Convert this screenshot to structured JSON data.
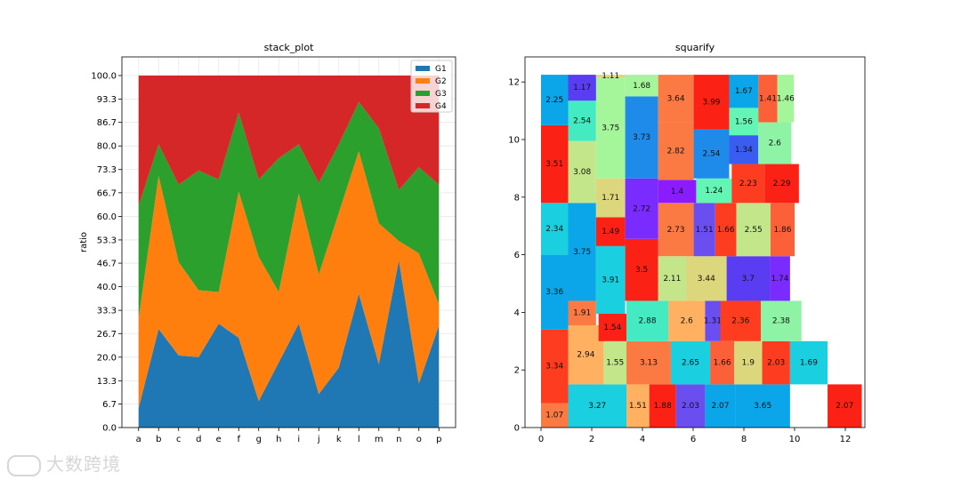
{
  "chart_data": [
    {
      "type": "area",
      "stacked": true,
      "title": "stack_plot",
      "ylabel": "ratio",
      "xlabel": "",
      "categories": [
        "a",
        "b",
        "c",
        "d",
        "e",
        "f",
        "g",
        "h",
        "i",
        "j",
        "k",
        "l",
        "m",
        "n",
        "o",
        "p"
      ],
      "yticks": [
        "0.0",
        "6.7",
        "13.3",
        "20.0",
        "26.7",
        "33.3",
        "40.0",
        "46.7",
        "53.3",
        "60.0",
        "66.7",
        "73.3",
        "80.0",
        "86.7",
        "93.3",
        "100.0"
      ],
      "ylim": [
        0,
        100
      ],
      "grid": true,
      "legend_position": "top-right",
      "series": [
        {
          "name": "G1",
          "color": "#1f77b4",
          "values": [
            5.5,
            28,
            20.5,
            20,
            29.5,
            25.5,
            7.5,
            18.5,
            29.5,
            9.5,
            17,
            38,
            18,
            47.5,
            12.5,
            29
          ]
        },
        {
          "name": "G2",
          "color": "#ff7f0e",
          "values": [
            25.5,
            43.5,
            26.5,
            19,
            9,
            41.5,
            41,
            20,
            37,
            34,
            44,
            40.5,
            40,
            5.5,
            37,
            6
          ]
        },
        {
          "name": "G3",
          "color": "#2ca02c",
          "values": [
            32,
            9,
            22,
            34,
            32,
            22.5,
            22,
            38,
            14,
            26,
            19.5,
            14,
            27,
            14.5,
            24.5,
            34
          ]
        },
        {
          "name": "G4",
          "color": "#d62728",
          "values": [
            37,
            19.5,
            31,
            27,
            29.5,
            10.5,
            29.5,
            23.5,
            19.5,
            30.5,
            19.5,
            7.5,
            15,
            32.5,
            26,
            31
          ]
        }
      ]
    },
    {
      "type": "treemap",
      "title": "squarify",
      "xlabel": "",
      "ylabel": "",
      "xlim": [
        0,
        12.65
      ],
      "ylim": [
        0,
        12.55
      ],
      "xticks": [
        "0",
        "2",
        "4",
        "6",
        "8",
        "10",
        "12"
      ],
      "yticks": [
        "0",
        "2",
        "4",
        "6",
        "8",
        "10",
        "12"
      ],
      "rects": [
        {
          "label": "1.07",
          "x": 0,
          "y": 0,
          "w": 1.07,
          "h": 0.85,
          "color": "#fb7a43"
        },
        {
          "label": "3.34",
          "x": 0,
          "y": 0.85,
          "w": 1.07,
          "h": 2.55,
          "color": "#fd3c20"
        },
        {
          "label": "3.36",
          "x": 0,
          "y": 3.4,
          "w": 1.07,
          "h": 2.6,
          "color": "#0ba6e9"
        },
        {
          "label": "2.34",
          "x": 0,
          "y": 6,
          "w": 1.07,
          "h": 1.8,
          "color": "#1acfe0"
        },
        {
          "label": "3.51",
          "x": 0,
          "y": 7.8,
          "w": 1.07,
          "h": 2.7,
          "color": "#fb2114"
        },
        {
          "label": "2.25",
          "x": 0,
          "y": 10.5,
          "w": 1.07,
          "h": 1.75,
          "color": "#0ba6e9"
        },
        {
          "label": "3.27",
          "x": 1.07,
          "y": 0,
          "w": 2.3,
          "h": 1.5,
          "color": "#1acfe0"
        },
        {
          "label": "1.51",
          "x": 3.37,
          "y": 0,
          "w": 0.9,
          "h": 1.5,
          "color": "#ffb060"
        },
        {
          "label": "1.88",
          "x": 4.27,
          "y": 0,
          "w": 1.05,
          "h": 1.5,
          "color": "#fb2114"
        },
        {
          "label": "2.03",
          "x": 5.32,
          "y": 0,
          "w": 1.15,
          "h": 1.5,
          "color": "#6a4ef0"
        },
        {
          "label": "2.07",
          "x": 6.47,
          "y": 0,
          "w": 1.2,
          "h": 1.5,
          "color": "#0ba6e9"
        },
        {
          "label": "3.65",
          "x": 7.67,
          "y": 0,
          "w": 2.15,
          "h": 1.5,
          "color": "#0ba6e9"
        },
        {
          "label": "2.07",
          "x": 11.3,
          "y": 0,
          "w": 1.35,
          "h": 1.5,
          "color": "#fb2114"
        },
        {
          "label": "2.94",
          "x": 1.07,
          "y": 1.5,
          "w": 1.4,
          "h": 2.05,
          "color": "#ffb060"
        },
        {
          "label": "1.55",
          "x": 2.47,
          "y": 1.5,
          "w": 0.9,
          "h": 1.5,
          "color": "#c4e68a"
        },
        {
          "label": "3.13",
          "x": 3.37,
          "y": 1.5,
          "w": 1.75,
          "h": 1.5,
          "color": "#fb7a43"
        },
        {
          "label": "2.65",
          "x": 5.12,
          "y": 1.5,
          "w": 1.55,
          "h": 1.5,
          "color": "#1acfe0"
        },
        {
          "label": "1.66",
          "x": 6.67,
          "y": 1.5,
          "w": 0.95,
          "h": 1.5,
          "color": "#fb6038"
        },
        {
          "label": "1.9",
          "x": 7.62,
          "y": 1.5,
          "w": 1.1,
          "h": 1.5,
          "color": "#dcd77c"
        },
        {
          "label": "2.03",
          "x": 8.72,
          "y": 1.5,
          "w": 1.1,
          "h": 1.5,
          "color": "#fd3c20"
        },
        {
          "label": "1.69",
          "x": 9.82,
          "y": 1.5,
          "w": 1.48,
          "h": 1.5,
          "color": "#1acfe0"
        },
        {
          "label": "1.91",
          "x": 1.07,
          "y": 3.55,
          "w": 1.1,
          "h": 0.85,
          "color": "#fb7a43"
        },
        {
          "label": "1.54",
          "x": 2.27,
          "y": 3,
          "w": 1.1,
          "h": 0.95,
          "color": "#fb2114"
        },
        {
          "label": "2.88",
          "x": 3.37,
          "y": 3,
          "w": 1.65,
          "h": 1.4,
          "color": "#44eac2"
        },
        {
          "label": "2.6",
          "x": 5.02,
          "y": 3,
          "w": 1.45,
          "h": 1.4,
          "color": "#ffb060"
        },
        {
          "label": "1.31",
          "x": 6.47,
          "y": 3,
          "w": 0.6,
          "h": 1.4,
          "color": "#6a4ef0"
        },
        {
          "label": "2.36",
          "x": 7.07,
          "y": 3,
          "w": 1.6,
          "h": 1.4,
          "color": "#fd3c20"
        },
        {
          "label": "2.38",
          "x": 8.67,
          "y": 3,
          "w": 1.6,
          "h": 1.4,
          "color": "#8ef3a4"
        },
        {
          "label": "3.75",
          "x": 1.07,
          "y": 4.4,
          "w": 1.1,
          "h": 3.4,
          "color": "#0ba6e9"
        },
        {
          "label": "3.91",
          "x": 2.17,
          "y": 3.95,
          "w": 1.15,
          "h": 2.35,
          "color": "#1acfe0"
        },
        {
          "label": "3.5",
          "x": 3.32,
          "y": 4.4,
          "w": 1.3,
          "h": 2.15,
          "color": "#fb2114"
        },
        {
          "label": "2.11",
          "x": 4.62,
          "y": 4.4,
          "w": 1.1,
          "h": 1.55,
          "color": "#c4e68a"
        },
        {
          "label": "3.44",
          "x": 5.72,
          "y": 4.4,
          "w": 1.6,
          "h": 1.55,
          "color": "#dcd77c"
        },
        {
          "label": "3.7",
          "x": 7.32,
          "y": 4.4,
          "w": 1.7,
          "h": 1.55,
          "color": "#5a3df2"
        },
        {
          "label": "1.74",
          "x": 9.02,
          "y": 4.4,
          "w": 0.8,
          "h": 1.55,
          "color": "#7a2bff"
        },
        {
          "label": "1.49",
          "x": 2.17,
          "y": 6.3,
          "w": 1.15,
          "h": 1.0,
          "color": "#fb2114"
        },
        {
          "label": "2.73",
          "x": 4.62,
          "y": 5.95,
          "w": 1.4,
          "h": 1.85,
          "color": "#fb7a43"
        },
        {
          "label": "1.51",
          "x": 6.02,
          "y": 5.95,
          "w": 0.85,
          "h": 1.85,
          "color": "#6a4ef0"
        },
        {
          "label": "1.66",
          "x": 6.87,
          "y": 5.95,
          "w": 0.83,
          "h": 1.85,
          "color": "#fd3c20"
        },
        {
          "label": "2.55",
          "x": 7.7,
          "y": 5.95,
          "w": 1.35,
          "h": 1.85,
          "color": "#c4e68a"
        },
        {
          "label": "1.86",
          "x": 9.05,
          "y": 5.95,
          "w": 0.95,
          "h": 1.85,
          "color": "#fb6038"
        },
        {
          "label": "3.08",
          "x": 1.07,
          "y": 7.8,
          "w": 1.1,
          "h": 2.15,
          "color": "#c4e68a"
        },
        {
          "label": "1.71",
          "x": 2.17,
          "y": 7.3,
          "w": 1.15,
          "h": 1.35,
          "color": "#dcd77c"
        },
        {
          "label": "2.72",
          "x": 3.32,
          "y": 6.55,
          "w": 1.3,
          "h": 2.1,
          "color": "#7a2bff"
        },
        {
          "label": "1.4",
          "x": 4.62,
          "y": 7.8,
          "w": 1.5,
          "h": 0.8,
          "color": "#8b1cff"
        },
        {
          "label": "1.24",
          "x": 6.12,
          "y": 7.8,
          "w": 1.4,
          "h": 0.85,
          "color": "#62f5b3"
        },
        {
          "label": "2.23",
          "x": 7.52,
          "y": 7.8,
          "w": 1.3,
          "h": 1.35,
          "color": "#fd3c20"
        },
        {
          "label": "2.29",
          "x": 8.82,
          "y": 7.8,
          "w": 1.35,
          "h": 1.35,
          "color": "#fb2114"
        },
        {
          "label": "2.54",
          "x": 1.07,
          "y": 9.95,
          "w": 1.1,
          "h": 1.4,
          "color": "#44eac2"
        },
        {
          "label": "3.75",
          "x": 2.17,
          "y": 8.65,
          "w": 1.15,
          "h": 3.5,
          "color": "#a5f59a"
        },
        {
          "label": "3.73",
          "x": 3.32,
          "y": 8.65,
          "w": 1.3,
          "h": 2.85,
          "color": "#1e8bea"
        },
        {
          "label": "2.82",
          "x": 4.62,
          "y": 8.6,
          "w": 1.4,
          "h": 2.0,
          "color": "#fb7a43"
        },
        {
          "label": "2.54",
          "x": 6.02,
          "y": 8.65,
          "w": 1.4,
          "h": 1.7,
          "color": "#1e8bea"
        },
        {
          "label": "1.34",
          "x": 7.42,
          "y": 9.15,
          "w": 1.15,
          "h": 1.0,
          "color": "#3a5cf0"
        },
        {
          "label": "2.6",
          "x": 8.57,
          "y": 9.15,
          "w": 1.3,
          "h": 1.45,
          "color": "#8ef3a4"
        },
        {
          "label": "1.17",
          "x": 1.07,
          "y": 11.35,
          "w": 1.1,
          "h": 0.9,
          "color": "#5a3df2"
        },
        {
          "label": "1.11",
          "x": 2.17,
          "y": 12.15,
          "w": 1.15,
          "h": 0.1,
          "color": "#dcd77c"
        },
        {
          "label": "1.68",
          "x": 3.32,
          "y": 11.5,
          "w": 1.3,
          "h": 0.75,
          "color": "#a5f59a"
        },
        {
          "label": "3.64",
          "x": 4.62,
          "y": 10.6,
          "w": 1.4,
          "h": 1.65,
          "color": "#fb7a43"
        },
        {
          "label": "3.99",
          "x": 6.02,
          "y": 10.35,
          "w": 1.4,
          "h": 1.9,
          "color": "#fb2114"
        },
        {
          "label": "1.56",
          "x": 7.42,
          "y": 10.15,
          "w": 1.15,
          "h": 0.95,
          "color": "#62f5b3"
        },
        {
          "label": "1.67",
          "x": 7.42,
          "y": 11.1,
          "w": 1.15,
          "h": 1.15,
          "color": "#0ba6e9"
        },
        {
          "label": "1.41",
          "x": 8.57,
          "y": 10.6,
          "w": 0.75,
          "h": 1.65,
          "color": "#fb6038"
        },
        {
          "label": "1.46",
          "x": 9.32,
          "y": 10.6,
          "w": 0.65,
          "h": 1.65,
          "color": "#a5f59a"
        }
      ]
    }
  ],
  "watermark": {
    "text": "大数跨境"
  }
}
